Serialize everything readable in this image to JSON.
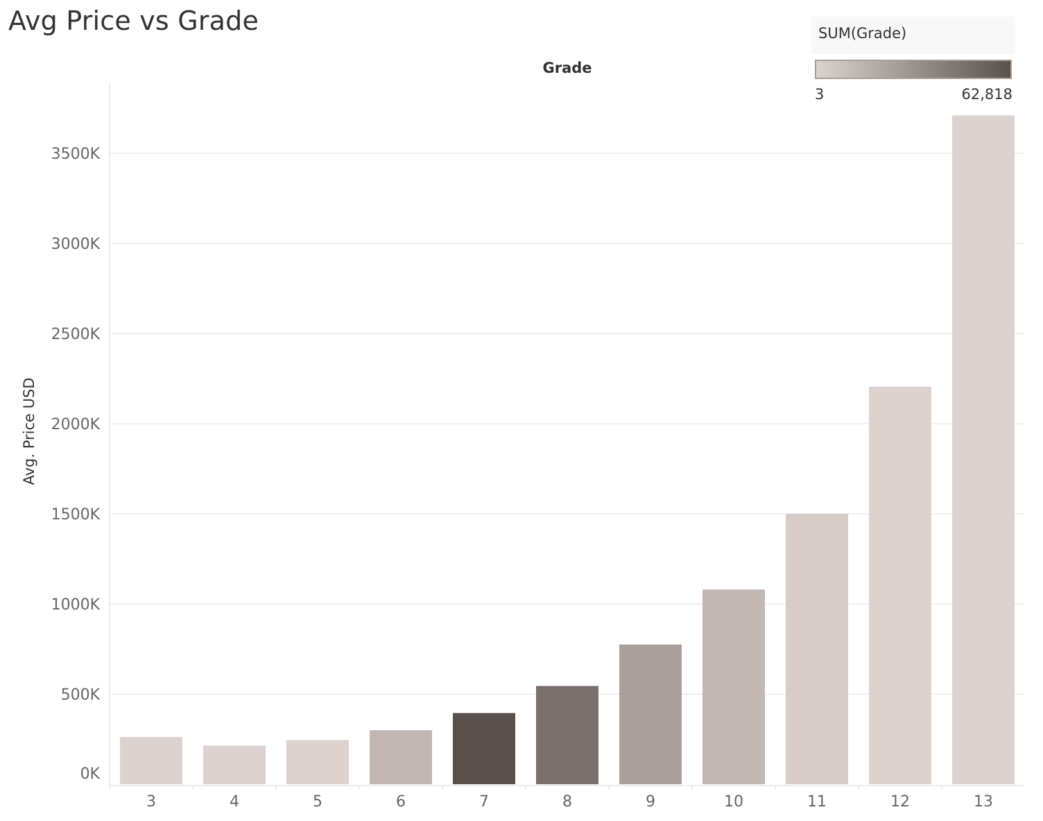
{
  "title": "Avg Price vs Grade",
  "legend": {
    "title": "SUM(Grade)",
    "min_label": "3",
    "max_label": "62,818",
    "color_low": "#dcd3d0",
    "color_high": "#5a514e"
  },
  "chart_data": {
    "type": "bar",
    "title": "Avg Price vs Grade",
    "xlabel": "Grade",
    "ylabel": "Avg. Price USD",
    "categories": [
      "3",
      "4",
      "5",
      "6",
      "7",
      "8",
      "9",
      "10",
      "11",
      "12",
      "13"
    ],
    "values": [
      262000,
      215000,
      245000,
      300000,
      395000,
      545000,
      775000,
      1080000,
      1500000,
      2205000,
      3710000
    ],
    "bar_colors": [
      "#dcd3d0",
      "#dcd3d0",
      "#dcd3d0",
      "#c1b7b4",
      "#5a514e",
      "#7a706d",
      "#a9a09e",
      "#c2b8b5",
      "#d6ccc8",
      "#dcd3d0",
      "#dcd3d0"
    ],
    "ylim": [
      0,
      3800000
    ],
    "yticks": [
      0,
      500000,
      1000000,
      1500000,
      2000000,
      2500000,
      3000000,
      3500000
    ],
    "ytick_labels": [
      "0K",
      "500K",
      "1000K",
      "1500K",
      "2000K",
      "2500K",
      "3000K",
      "3500K"
    ],
    "grid": true
  }
}
